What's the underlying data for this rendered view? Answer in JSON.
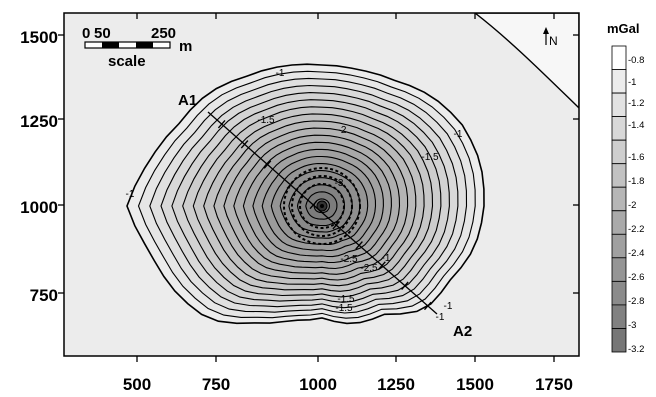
{
  "map": {
    "x_ticks": [
      "500",
      "750",
      "1000",
      "1250",
      "1500",
      "1750"
    ],
    "y_ticks": [
      "750",
      "1000",
      "1250",
      "1500"
    ],
    "profile": {
      "start_label": "A1",
      "end_label": "A2"
    },
    "scale_bar": {
      "ticks": [
        "0",
        "50",
        "250"
      ],
      "unit": "m",
      "label": "scale"
    },
    "north_label": "N",
    "contour_labels": [
      "-1",
      "-1",
      "-1",
      "-1",
      "-1.5",
      "-1.5",
      "-1.5",
      "-2",
      "-2.5",
      "-3",
      "-1",
      "-2.5",
      "-1.5",
      "-1"
    ]
  },
  "colorbar": {
    "title": "mGal",
    "labels": [
      "-0.8",
      "-1",
      "-1.2",
      "-1.4",
      "-1.6",
      "-1.8",
      "-2",
      "-2.2",
      "-2.4",
      "-2.6",
      "-2.8",
      "-3",
      "-3.2"
    ],
    "colors": [
      "#ffffff",
      "#ececec",
      "#e2e2e2",
      "#d8d8d8",
      "#cecece",
      "#c2c2c2",
      "#b6b6b6",
      "#aaaaaa",
      "#a0a0a0",
      "#959595",
      "#8b8b8b",
      "#818181",
      "#767676"
    ]
  },
  "chart_data": {
    "type": "heatmap",
    "xlim": [
      340,
      1810
    ],
    "ylim": [
      575,
      1560
    ],
    "center": [
      1060,
      985
    ],
    "min_value": -3.2,
    "contour_levels": [
      -1,
      -1.5,
      -2,
      -2.5,
      -3
    ],
    "unit": "mGal"
  }
}
